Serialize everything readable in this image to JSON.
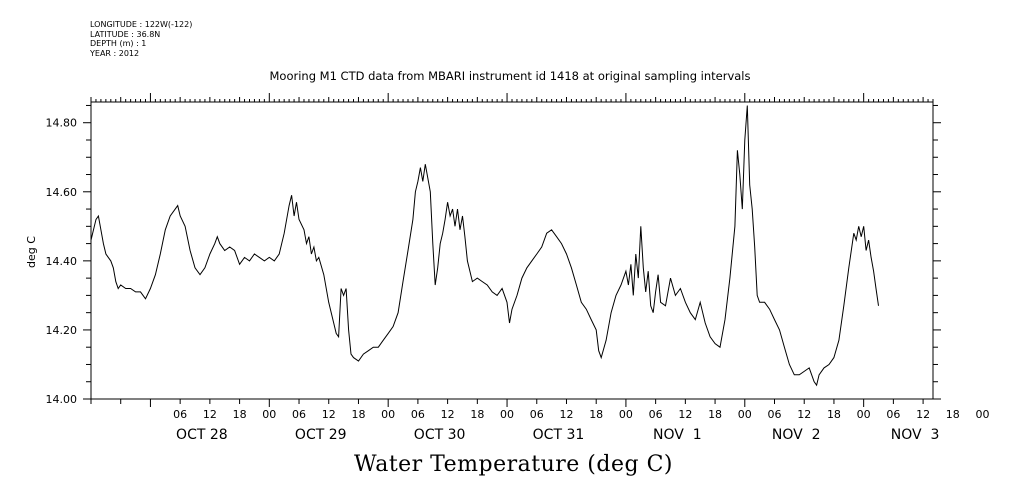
{
  "header": {
    "longitude": "LONGITUDE : 122W(-122)",
    "latitude": "LATITUDE : 36.8N",
    "depth": "DEPTH (m) : 1",
    "year": "YEAR : 2012"
  },
  "chart_data": {
    "type": "line",
    "title": "Mooring M1 CTD data from MBARI instrument id 1418 at original sampling intervals",
    "bottom_title": "Water Temperature (deg C)",
    "ylabel": "deg C",
    "xlabel": "",
    "ylim": [
      14.0,
      14.86
    ],
    "y_ticks": [
      "14.00",
      "14.20",
      "14.40",
      "14.60",
      "14.80"
    ],
    "x_range_hours": [
      -12,
      158
    ],
    "x_hour_ticks": [
      "06",
      "12",
      "18",
      "00",
      "06",
      "12",
      "18",
      "00",
      "06",
      "12",
      "18",
      "00",
      "06",
      "12",
      "18",
      "00",
      "06",
      "12",
      "18",
      "00",
      "06",
      "12",
      "18",
      "00",
      "06",
      "12",
      "18",
      "00"
    ],
    "x_date_labels": [
      "OCT 28",
      "OCT 29",
      "OCT 30",
      "OCT 31",
      "NOV  1",
      "NOV  2",
      "NOV  3"
    ],
    "grid": false,
    "series": [
      {
        "values": [
          [
            -12.0,
            14.46
          ],
          [
            -11.5,
            14.49
          ],
          [
            -11.0,
            14.52
          ],
          [
            -10.5,
            14.53
          ],
          [
            -10.0,
            14.49
          ],
          [
            -9.5,
            14.45
          ],
          [
            -9.0,
            14.42
          ],
          [
            -8.5,
            14.41
          ],
          [
            -8.0,
            14.4
          ],
          [
            -7.5,
            14.38
          ],
          [
            -7.0,
            14.34
          ],
          [
            -6.5,
            14.32
          ],
          [
            -6.0,
            14.33
          ],
          [
            -5.0,
            14.32
          ],
          [
            -4.0,
            14.32
          ],
          [
            -3.0,
            14.31
          ],
          [
            -2.0,
            14.31
          ],
          [
            -1.0,
            14.29
          ],
          [
            0.0,
            14.32
          ],
          [
            1.0,
            14.36
          ],
          [
            2.0,
            14.42
          ],
          [
            3.0,
            14.49
          ],
          [
            4.0,
            14.53
          ],
          [
            5.0,
            14.55
          ],
          [
            5.5,
            14.56
          ],
          [
            6.0,
            14.53
          ],
          [
            7.0,
            14.5
          ],
          [
            8.0,
            14.43
          ],
          [
            9.0,
            14.38
          ],
          [
            10.0,
            14.36
          ],
          [
            11.0,
            14.38
          ],
          [
            12.0,
            14.42
          ],
          [
            13.0,
            14.45
          ],
          [
            13.5,
            14.47
          ],
          [
            14.0,
            14.45
          ],
          [
            15.0,
            14.43
          ],
          [
            16.0,
            14.44
          ],
          [
            17.0,
            14.43
          ],
          [
            18.0,
            14.39
          ],
          [
            19.0,
            14.41
          ],
          [
            20.0,
            14.4
          ],
          [
            21.0,
            14.42
          ],
          [
            22.0,
            14.41
          ],
          [
            23.0,
            14.4
          ],
          [
            24.0,
            14.41
          ],
          [
            25.0,
            14.4
          ],
          [
            26.0,
            14.42
          ],
          [
            27.0,
            14.48
          ],
          [
            28.0,
            14.56
          ],
          [
            28.5,
            14.59
          ],
          [
            29.0,
            14.53
          ],
          [
            29.5,
            14.57
          ],
          [
            30.0,
            14.52
          ],
          [
            31.0,
            14.49
          ],
          [
            31.5,
            14.45
          ],
          [
            32.0,
            14.47
          ],
          [
            32.5,
            14.42
          ],
          [
            33.0,
            14.44
          ],
          [
            33.5,
            14.4
          ],
          [
            34.0,
            14.41
          ],
          [
            35.0,
            14.36
          ],
          [
            36.0,
            14.28
          ],
          [
            37.0,
            14.22
          ],
          [
            37.5,
            14.19
          ],
          [
            38.0,
            14.18
          ],
          [
            38.5,
            14.32
          ],
          [
            39.0,
            14.3
          ],
          [
            39.5,
            14.32
          ],
          [
            40.0,
            14.2
          ],
          [
            40.5,
            14.13
          ],
          [
            41.0,
            14.12
          ],
          [
            42.0,
            14.11
          ],
          [
            43.0,
            14.13
          ],
          [
            44.0,
            14.14
          ],
          [
            45.0,
            14.15
          ],
          [
            46.0,
            14.15
          ],
          [
            47.0,
            14.17
          ],
          [
            48.0,
            14.19
          ],
          [
            49.0,
            14.21
          ],
          [
            50.0,
            14.25
          ],
          [
            51.0,
            14.34
          ],
          [
            52.0,
            14.43
          ],
          [
            53.0,
            14.52
          ],
          [
            53.5,
            14.6
          ],
          [
            54.0,
            14.63
          ],
          [
            54.5,
            14.67
          ],
          [
            55.0,
            14.63
          ],
          [
            55.5,
            14.68
          ],
          [
            56.0,
            14.64
          ],
          [
            56.5,
            14.6
          ],
          [
            57.0,
            14.45
          ],
          [
            57.5,
            14.33
          ],
          [
            58.0,
            14.38
          ],
          [
            58.5,
            14.45
          ],
          [
            59.0,
            14.48
          ],
          [
            59.5,
            14.52
          ],
          [
            60.0,
            14.57
          ],
          [
            60.5,
            14.53
          ],
          [
            61.0,
            14.55
          ],
          [
            61.5,
            14.5
          ],
          [
            62.0,
            14.55
          ],
          [
            62.5,
            14.49
          ],
          [
            63.0,
            14.53
          ],
          [
            63.5,
            14.47
          ],
          [
            64.0,
            14.4
          ],
          [
            65.0,
            14.34
          ],
          [
            66.0,
            14.35
          ],
          [
            67.0,
            14.34
          ],
          [
            68.0,
            14.33
          ],
          [
            69.0,
            14.31
          ],
          [
            70.0,
            14.3
          ],
          [
            71.0,
            14.32
          ],
          [
            72.0,
            14.28
          ],
          [
            72.5,
            14.22
          ],
          [
            73.0,
            14.26
          ],
          [
            74.0,
            14.3
          ],
          [
            75.0,
            14.35
          ],
          [
            76.0,
            14.38
          ],
          [
            77.0,
            14.4
          ],
          [
            78.0,
            14.42
          ],
          [
            79.0,
            14.44
          ],
          [
            80.0,
            14.48
          ],
          [
            81.0,
            14.49
          ],
          [
            82.0,
            14.47
          ],
          [
            83.0,
            14.45
          ],
          [
            84.0,
            14.42
          ],
          [
            85.0,
            14.38
          ],
          [
            86.0,
            14.33
          ],
          [
            87.0,
            14.28
          ],
          [
            88.0,
            14.26
          ],
          [
            89.0,
            14.23
          ],
          [
            90.0,
            14.2
          ],
          [
            90.5,
            14.14
          ],
          [
            91.0,
            14.12
          ],
          [
            92.0,
            14.17
          ],
          [
            93.0,
            14.25
          ],
          [
            94.0,
            14.3
          ],
          [
            95.0,
            14.33
          ],
          [
            96.0,
            14.37
          ],
          [
            96.5,
            14.33
          ],
          [
            97.0,
            14.39
          ],
          [
            97.5,
            14.3
          ],
          [
            98.0,
            14.42
          ],
          [
            98.5,
            14.35
          ],
          [
            99.0,
            14.5
          ],
          [
            99.5,
            14.38
          ],
          [
            100.0,
            14.31
          ],
          [
            100.5,
            14.37
          ],
          [
            101.0,
            14.27
          ],
          [
            101.5,
            14.25
          ],
          [
            102.0,
            14.31
          ],
          [
            102.5,
            14.36
          ],
          [
            103.0,
            14.28
          ],
          [
            104.0,
            14.27
          ],
          [
            105.0,
            14.35
          ],
          [
            106.0,
            14.3
          ],
          [
            107.0,
            14.32
          ],
          [
            108.0,
            14.28
          ],
          [
            109.0,
            14.25
          ],
          [
            110.0,
            14.23
          ],
          [
            111.0,
            14.28
          ],
          [
            112.0,
            14.22
          ],
          [
            113.0,
            14.18
          ],
          [
            114.0,
            14.16
          ],
          [
            115.0,
            14.15
          ],
          [
            116.0,
            14.23
          ],
          [
            117.0,
            14.35
          ],
          [
            118.0,
            14.5
          ],
          [
            118.5,
            14.72
          ],
          [
            119.0,
            14.65
          ],
          [
            119.5,
            14.55
          ],
          [
            120.0,
            14.75
          ],
          [
            120.5,
            14.85
          ],
          [
            121.0,
            14.62
          ],
          [
            121.5,
            14.55
          ],
          [
            122.0,
            14.44
          ],
          [
            122.5,
            14.3
          ],
          [
            123.0,
            14.28
          ],
          [
            124.0,
            14.28
          ],
          [
            125.0,
            14.26
          ],
          [
            126.0,
            14.23
          ],
          [
            127.0,
            14.2
          ],
          [
            128.0,
            14.15
          ],
          [
            129.0,
            14.1
          ],
          [
            130.0,
            14.07
          ],
          [
            131.0,
            14.07
          ],
          [
            132.0,
            14.08
          ],
          [
            133.0,
            14.09
          ],
          [
            134.0,
            14.05
          ],
          [
            134.5,
            14.04
          ],
          [
            135.0,
            14.07
          ],
          [
            136.0,
            14.09
          ],
          [
            137.0,
            14.1
          ],
          [
            138.0,
            14.12
          ],
          [
            139.0,
            14.17
          ],
          [
            140.0,
            14.27
          ],
          [
            141.0,
            14.38
          ],
          [
            142.0,
            14.48
          ],
          [
            142.5,
            14.46
          ],
          [
            143.0,
            14.5
          ],
          [
            143.5,
            14.47
          ],
          [
            144.0,
            14.5
          ],
          [
            144.5,
            14.43
          ],
          [
            145.0,
            14.46
          ],
          [
            145.5,
            14.41
          ],
          [
            146.0,
            14.37
          ],
          [
            146.5,
            14.32
          ],
          [
            147.0,
            14.27
          ]
        ]
      }
    ]
  }
}
